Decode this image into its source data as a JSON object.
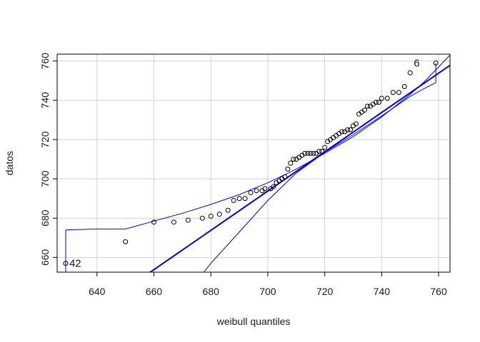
{
  "chart_data": {
    "type": "scatter",
    "title": "",
    "xlabel": "weibull quantiles",
    "ylabel": "datos",
    "xlim": [
      626,
      764
    ],
    "ylim": [
      652.5,
      763.5
    ],
    "xticks": [
      640,
      660,
      680,
      700,
      720,
      740,
      760
    ],
    "yticks": [
      660,
      680,
      700,
      720,
      740,
      760
    ],
    "grid": true,
    "colors": {
      "points": "#000000",
      "reference_line": "#0000ee",
      "envelope": "#0000ee",
      "grid": "#d3d3d3",
      "frame": "#000000"
    },
    "points": [
      {
        "x": 629,
        "y": 657
      },
      {
        "x": 650,
        "y": 668
      },
      {
        "x": 660,
        "y": 678
      },
      {
        "x": 667,
        "y": 678
      },
      {
        "x": 672,
        "y": 679
      },
      {
        "x": 677,
        "y": 680
      },
      {
        "x": 680,
        "y": 681
      },
      {
        "x": 683,
        "y": 682
      },
      {
        "x": 686,
        "y": 684
      },
      {
        "x": 688,
        "y": 689
      },
      {
        "x": 690,
        "y": 690
      },
      {
        "x": 692,
        "y": 690
      },
      {
        "x": 694,
        "y": 693
      },
      {
        "x": 696,
        "y": 694
      },
      {
        "x": 698,
        "y": 694
      },
      {
        "x": 699,
        "y": 695
      },
      {
        "x": 701,
        "y": 695
      },
      {
        "x": 702,
        "y": 696
      },
      {
        "x": 703,
        "y": 698
      },
      {
        "x": 704,
        "y": 699
      },
      {
        "x": 705,
        "y": 700
      },
      {
        "x": 706,
        "y": 701
      },
      {
        "x": 707,
        "y": 705
      },
      {
        "x": 708,
        "y": 708
      },
      {
        "x": 709,
        "y": 710
      },
      {
        "x": 710,
        "y": 710
      },
      {
        "x": 711,
        "y": 711
      },
      {
        "x": 712,
        "y": 712
      },
      {
        "x": 713,
        "y": 713
      },
      {
        "x": 714,
        "y": 713
      },
      {
        "x": 715,
        "y": 713
      },
      {
        "x": 716,
        "y": 713
      },
      {
        "x": 717,
        "y": 713
      },
      {
        "x": 718,
        "y": 714
      },
      {
        "x": 719,
        "y": 714
      },
      {
        "x": 720,
        "y": 716
      },
      {
        "x": 721,
        "y": 719
      },
      {
        "x": 722,
        "y": 720
      },
      {
        "x": 723,
        "y": 721
      },
      {
        "x": 724,
        "y": 722
      },
      {
        "x": 725,
        "y": 723
      },
      {
        "x": 726,
        "y": 724
      },
      {
        "x": 727,
        "y": 724
      },
      {
        "x": 728,
        "y": 725
      },
      {
        "x": 729,
        "y": 725
      },
      {
        "x": 730,
        "y": 727
      },
      {
        "x": 731,
        "y": 728
      },
      {
        "x": 732,
        "y": 733
      },
      {
        "x": 733,
        "y": 734
      },
      {
        "x": 734,
        "y": 735
      },
      {
        "x": 735,
        "y": 737
      },
      {
        "x": 736,
        "y": 737
      },
      {
        "x": 737,
        "y": 738
      },
      {
        "x": 738,
        "y": 739
      },
      {
        "x": 739,
        "y": 739
      },
      {
        "x": 740,
        "y": 741
      },
      {
        "x": 742,
        "y": 741
      },
      {
        "x": 744,
        "y": 744
      },
      {
        "x": 746,
        "y": 744
      },
      {
        "x": 748,
        "y": 747
      },
      {
        "x": 750,
        "y": 754
      },
      {
        "x": 759,
        "y": 759
      }
    ],
    "point_labels": [
      {
        "text": "6",
        "x": 750,
        "y": 759
      },
      {
        "text": "42",
        "x": 629,
        "y": 657
      }
    ],
    "reference_line": {
      "slope": 1.0,
      "intercept": -6.2
    },
    "envelope_upper": [
      {
        "x": 629,
        "y": 674
      },
      {
        "x": 640,
        "y": 674.5
      },
      {
        "x": 650,
        "y": 674.5
      },
      {
        "x": 660,
        "y": 678.5
      },
      {
        "x": 670,
        "y": 682.5
      },
      {
        "x": 680,
        "y": 687
      },
      {
        "x": 690,
        "y": 692
      },
      {
        "x": 700,
        "y": 698
      },
      {
        "x": 710,
        "y": 705
      },
      {
        "x": 720,
        "y": 713
      },
      {
        "x": 730,
        "y": 721.5
      },
      {
        "x": 740,
        "y": 731.5
      },
      {
        "x": 750,
        "y": 743
      },
      {
        "x": 755,
        "y": 749.5
      },
      {
        "x": 760,
        "y": 757
      },
      {
        "x": 764,
        "y": 763
      }
    ],
    "envelope_lower": [
      {
        "x": 629,
        "y": 652.5
      },
      {
        "x": 629,
        "y": 657
      },
      {
        "x": 629,
        "y": 674
      }
    ],
    "envelope_lower_main": [
      {
        "x": 677.5,
        "y": 652.5
      },
      {
        "x": 680,
        "y": 657
      },
      {
        "x": 690,
        "y": 673
      },
      {
        "x": 700,
        "y": 689
      },
      {
        "x": 710,
        "y": 703
      },
      {
        "x": 720,
        "y": 713.5
      },
      {
        "x": 730,
        "y": 722.5
      },
      {
        "x": 740,
        "y": 732
      },
      {
        "x": 750,
        "y": 742
      }
    ],
    "envelope_lower_tail": [
      {
        "x": 750,
        "y": 742
      },
      {
        "x": 755,
        "y": 746
      },
      {
        "x": 759,
        "y": 749
      },
      {
        "x": 759,
        "y": 759
      }
    ]
  }
}
